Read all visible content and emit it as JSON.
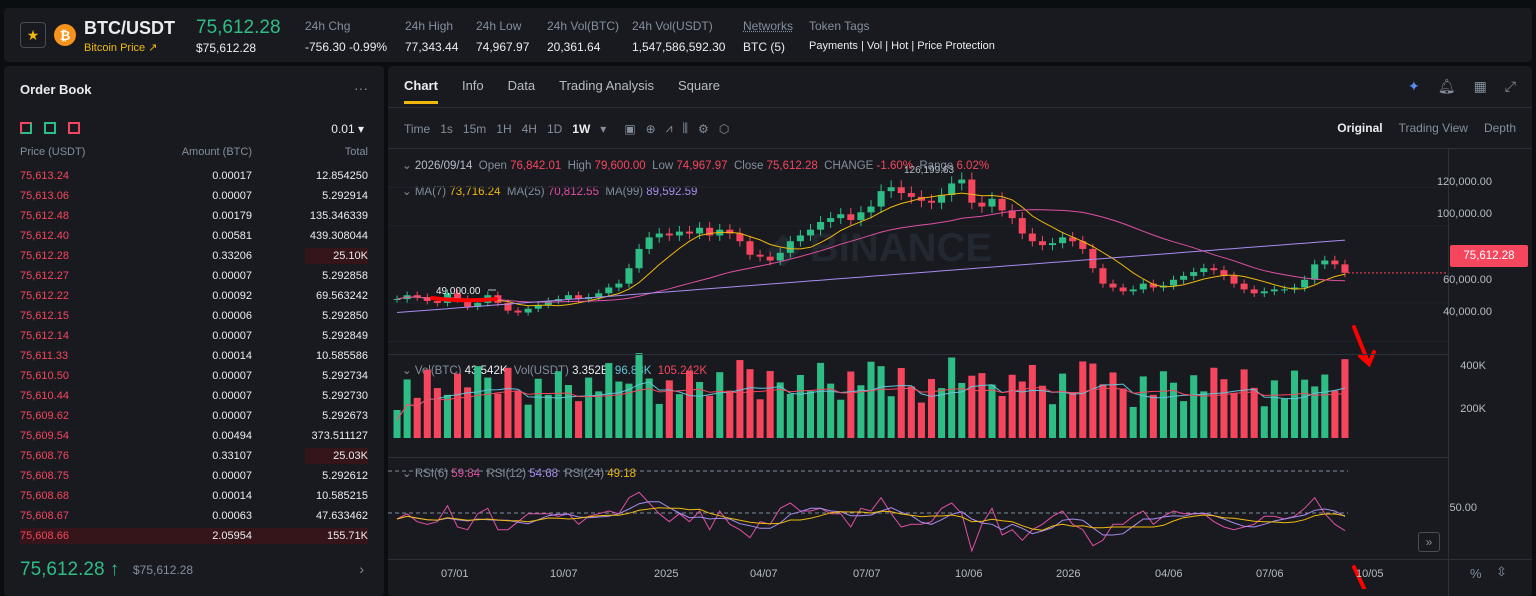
{
  "header": {
    "pair": "BTC/USDT",
    "coin_link": "Bitcoin Price",
    "last_price": "75,612.28",
    "last_price_usd": "$75,612.28",
    "stats": [
      {
        "label": "24h Chg",
        "value": "-756.30 -0.99%",
        "color": "red"
      },
      {
        "label": "24h High",
        "value": "77,343.44"
      },
      {
        "label": "24h Low",
        "value": "74,967.97"
      },
      {
        "label": "24h Vol(BTC)",
        "value": "20,361.64"
      },
      {
        "label": "24h Vol(USDT)",
        "value": "1,547,586,592.30"
      },
      {
        "label": "Networks",
        "value": "BTC (5)"
      },
      {
        "label": "Token Tags",
        "value": "Payments | Vol | Hot | Price Protection",
        "color": "yellow"
      }
    ]
  },
  "orderbook": {
    "title": "Order Book",
    "step": "0.01",
    "col_price": "Price (USDT)",
    "col_amount": "Amount (BTC)",
    "col_total": "Total",
    "rows": [
      {
        "p": "75,613.24",
        "a": "0.00017",
        "t": "12.854250",
        "bar": 0
      },
      {
        "p": "75,613.06",
        "a": "0.00007",
        "t": "5.292914",
        "bar": 0
      },
      {
        "p": "75,612.48",
        "a": "0.00179",
        "t": "135.346339",
        "bar": 0
      },
      {
        "p": "75,612.40",
        "a": "0.00581",
        "t": "439.308044",
        "bar": 0
      },
      {
        "p": "75,612.28",
        "a": "0.33206",
        "t": "25.10K",
        "bar": 0.18
      },
      {
        "p": "75,612.27",
        "a": "0.00007",
        "t": "5.292858",
        "bar": 0
      },
      {
        "p": "75,612.22",
        "a": "0.00092",
        "t": "69.563242",
        "bar": 0
      },
      {
        "p": "75,612.15",
        "a": "0.00006",
        "t": "5.292850",
        "bar": 0
      },
      {
        "p": "75,612.14",
        "a": "0.00007",
        "t": "5.292849",
        "bar": 0
      },
      {
        "p": "75,611.33",
        "a": "0.00014",
        "t": "10.585586",
        "bar": 0
      },
      {
        "p": "75,610.50",
        "a": "0.00007",
        "t": "5.292734",
        "bar": 0
      },
      {
        "p": "75,610.44",
        "a": "0.00007",
        "t": "5.292730",
        "bar": 0
      },
      {
        "p": "75,609.62",
        "a": "0.00007",
        "t": "5.292673",
        "bar": 0
      },
      {
        "p": "75,609.54",
        "a": "0.00494",
        "t": "373.511127",
        "bar": 0
      },
      {
        "p": "75,608.76",
        "a": "0.33107",
        "t": "25.03K",
        "bar": 0.18
      },
      {
        "p": "75,608.75",
        "a": "0.00007",
        "t": "5.292612",
        "bar": 0
      },
      {
        "p": "75,608.68",
        "a": "0.00014",
        "t": "10.585215",
        "bar": 0
      },
      {
        "p": "75,608.67",
        "a": "0.00063",
        "t": "47.633462",
        "bar": 0
      },
      {
        "p": "75,608.66",
        "a": "2.05954",
        "t": "155.71K",
        "bar": 1.0
      }
    ],
    "last_price": "75,612.28",
    "last_price_usd": "$75,612.28"
  },
  "chart_panel": {
    "tabs": [
      "Chart",
      "Info",
      "Data",
      "Trading Analysis",
      "Square"
    ],
    "intervals": [
      "Time",
      "1s",
      "15m",
      "1H",
      "4H",
      "1D",
      "1W"
    ],
    "active_interval": "1W",
    "views": [
      "Original",
      "Trading View",
      "Depth"
    ],
    "ohlc": {
      "date": "2026/09/14",
      "open": "76,842.01",
      "high": "79,600.00",
      "low": "74,967.97",
      "close": "75,612.28",
      "change": "-1.60%",
      "range": "6.02%"
    },
    "ma": {
      "ma7": "73,716.24",
      "ma25": "70,812.55",
      "ma99": "89,592.59"
    },
    "vol": {
      "btc": "43.542K",
      "usdt": "3.352B",
      "v1": "96.83K",
      "v2": "105.242K"
    },
    "rsi": {
      "r6": "59.84",
      "r12": "54.68",
      "r24": "49.18"
    },
    "price_axis": [
      "120,000.00",
      "100,000.00",
      "60,000.00",
      "40,000.00"
    ],
    "vol_axis": [
      "400K",
      "200K"
    ],
    "rsi_axis": [
      "50.00"
    ],
    "current_price_tag": "75,612.28",
    "high_marker": "126,199.63",
    "low_marker": "49,000.00",
    "time_axis": [
      "07/01",
      "10/07",
      "2025",
      "04/07",
      "07/07",
      "10/06",
      "2026",
      "04/06",
      "07/06",
      "10/05"
    ]
  },
  "chart_data": {
    "type": "candlestick",
    "close_series": [
      62000,
      64000,
      63000,
      61000,
      60000,
      65000,
      62000,
      58000,
      60000,
      64000,
      60000,
      56000,
      55000,
      57000,
      59000,
      61000,
      62000,
      64000,
      62000,
      63000,
      65000,
      68000,
      70000,
      78000,
      88000,
      94000,
      96000,
      95000,
      97000,
      96000,
      99000,
      95000,
      98000,
      96000,
      92000,
      85000,
      84000,
      82000,
      86000,
      92000,
      95000,
      98000,
      102000,
      104000,
      106000,
      103000,
      107000,
      110000,
      118000,
      120000,
      117000,
      115000,
      113000,
      112000,
      116000,
      122000,
      124000,
      112000,
      110000,
      114000,
      108000,
      104000,
      96000,
      92000,
      90000,
      91000,
      94000,
      92000,
      88000,
      78000,
      70000,
      68000,
      66000,
      67000,
      70000,
      68000,
      69000,
      72000,
      74000,
      76000,
      78000,
      77000,
      74000,
      70000,
      67000,
      65000,
      66000,
      67000,
      67000,
      68000,
      72000,
      80000,
      82000,
      80000,
      75612
    ]
  }
}
